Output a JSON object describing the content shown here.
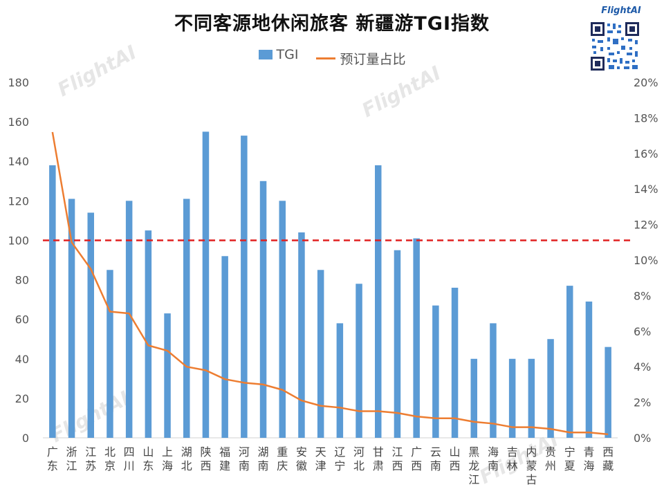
{
  "title": "不同客源地休闲旅客 新疆游TGI指数",
  "legend": {
    "bar_label": "TGI",
    "line_label": "预订量占比"
  },
  "brand": {
    "logo_text": "FlightAI",
    "watermark_text": "FlightAI"
  },
  "colors": {
    "bar": "#5b9bd5",
    "line": "#ed7d31",
    "reference": "#e02020"
  },
  "chart_data": {
    "type": "bar",
    "combo": "bar + line (secondary axis)",
    "categories": [
      "广东",
      "浙江",
      "江苏",
      "北京",
      "四川",
      "山东",
      "上海",
      "湖北",
      "陕西",
      "福建",
      "河南",
      "湖南",
      "重庆",
      "安徽",
      "天津",
      "辽宁",
      "河北",
      "甘肃",
      "江西",
      "广西",
      "云南",
      "山西",
      "黑龙江",
      "海南",
      "吉林",
      "内蒙古",
      "贵州",
      "宁夏",
      "青海",
      "西藏"
    ],
    "series": [
      {
        "name": "TGI",
        "type": "bar",
        "axis": "left",
        "values": [
          138,
          121,
          114,
          85,
          120,
          105,
          63,
          121,
          155,
          92,
          153,
          130,
          120,
          104,
          85,
          58,
          78,
          138,
          95,
          101,
          67,
          76,
          40,
          58,
          40,
          40,
          50,
          77,
          69,
          46
        ]
      },
      {
        "name": "预订量占比",
        "type": "line",
        "axis": "right",
        "values": [
          0.172,
          0.11,
          0.095,
          0.071,
          0.07,
          0.052,
          0.049,
          0.04,
          0.038,
          0.033,
          0.031,
          0.03,
          0.027,
          0.021,
          0.018,
          0.017,
          0.015,
          0.015,
          0.014,
          0.012,
          0.011,
          0.011,
          0.009,
          0.008,
          0.006,
          0.006,
          0.005,
          0.003,
          0.003,
          0.002
        ]
      }
    ],
    "reference_line": {
      "value": 100,
      "axis": "left",
      "style": "dashed"
    },
    "ylim": [
      0,
      180
    ],
    "y_ticks": [
      0,
      20,
      40,
      60,
      80,
      100,
      120,
      140,
      160,
      180
    ],
    "y2lim": [
      0,
      0.2
    ],
    "y2_ticks": [
      "0%",
      "2%",
      "4%",
      "6%",
      "8%",
      "10%",
      "12%",
      "14%",
      "16%",
      "18%",
      "20%"
    ],
    "legend_position": "top-center",
    "grid": false
  }
}
